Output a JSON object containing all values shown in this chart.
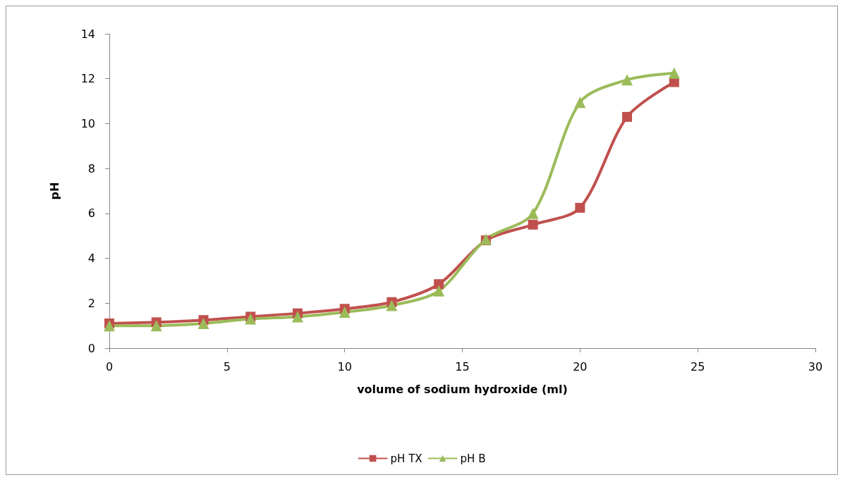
{
  "chart_data": {
    "type": "line",
    "xlabel": "volume of sodium hydroxide (ml)",
    "ylabel": "pH",
    "x": [
      0,
      2,
      4,
      6,
      8,
      10,
      12,
      14,
      16,
      18,
      20,
      22,
      24
    ],
    "series": [
      {
        "name": "pH TX",
        "color": "#c0504d",
        "marker": "square",
        "values": [
          1.1,
          1.15,
          1.25,
          1.4,
          1.55,
          1.75,
          2.05,
          2.85,
          4.8,
          5.5,
          6.25,
          10.3,
          11.85
        ]
      },
      {
        "name": "pH B",
        "color": "#9bbb59",
        "marker": "triangle",
        "values": [
          1.0,
          1.0,
          1.1,
          1.3,
          1.4,
          1.6,
          1.9,
          2.55,
          4.85,
          6.0,
          10.95,
          11.95,
          12.25
        ]
      }
    ],
    "xlim": [
      0,
      30
    ],
    "xticks": [
      0,
      5,
      10,
      15,
      20,
      25,
      30
    ],
    "ylim": [
      0,
      14
    ],
    "yticks": [
      0,
      2,
      4,
      6,
      8,
      10,
      12,
      14
    ],
    "grid": false,
    "legend": "bottom",
    "line_style": "solid"
  }
}
